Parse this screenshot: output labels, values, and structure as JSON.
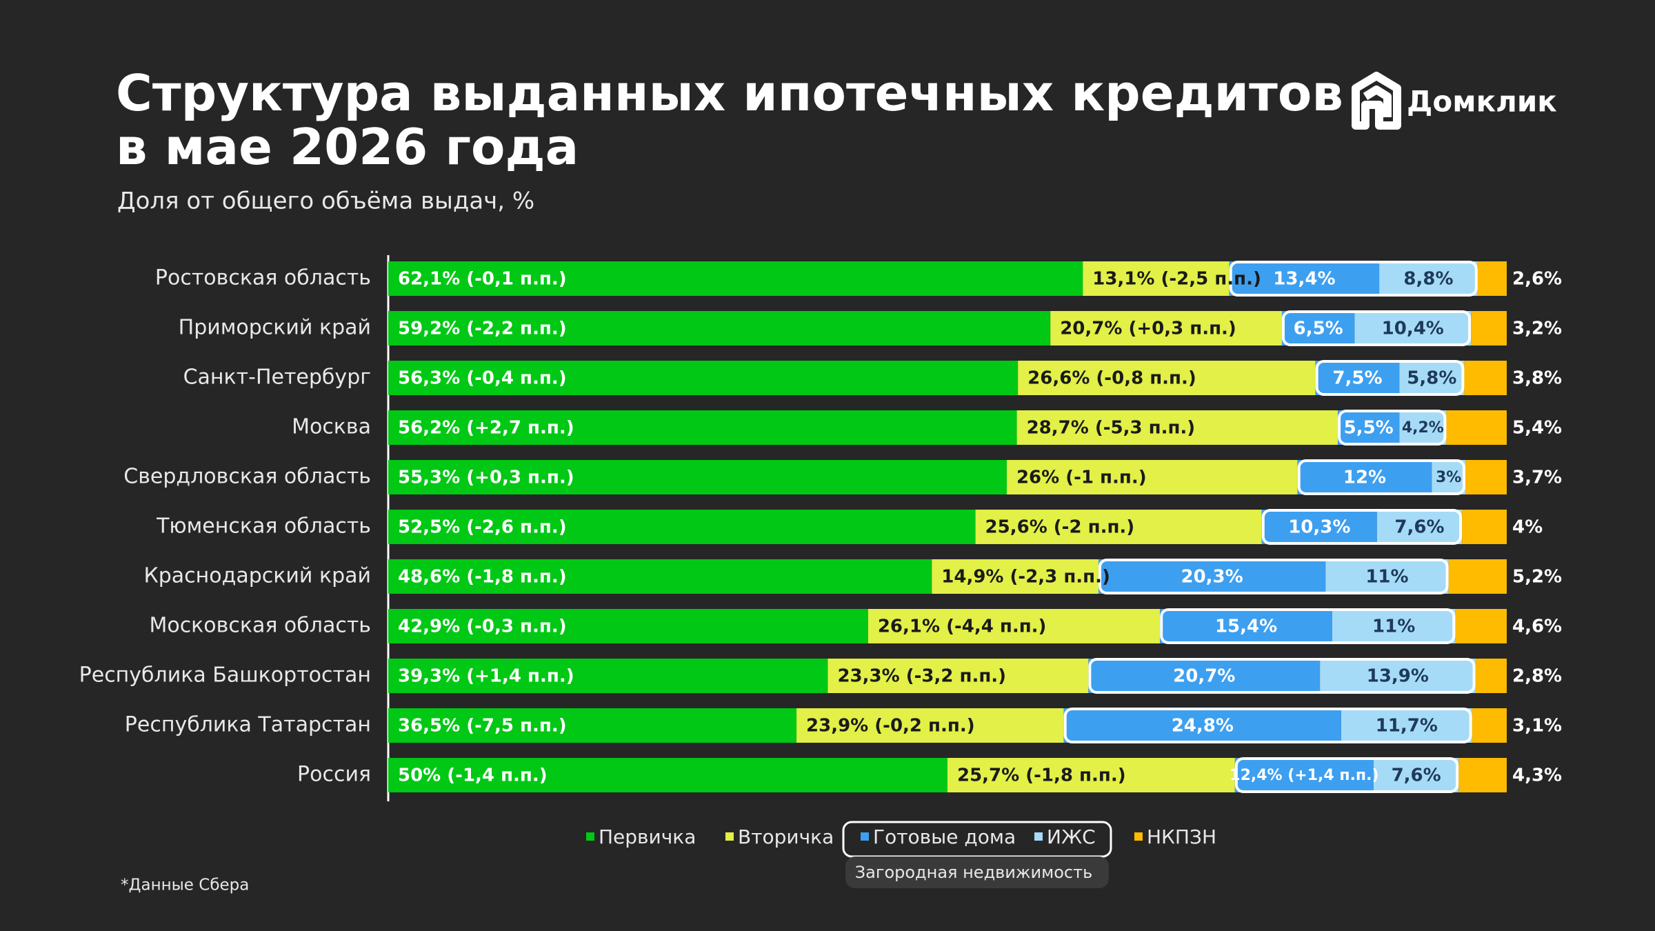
{
  "chart_data": {
    "type": "stacked_bar_horizontal",
    "title": "Структура выданных ипотечных кредитов в мае 2026 года",
    "subtitle": "Доля от общего объёма выдач, %",
    "logo": "Домклик",
    "footnote": "*Данные Сбера",
    "group_label": "Загородная недвижимость",
    "xlim": [
      0,
      100
    ],
    "categories": [
      "Ростовская область",
      "Приморский край",
      "Санкт-Петербург",
      "Москва",
      "Свердловская область",
      "Тюменская область",
      "Краснодарский край",
      "Московская область",
      "Республика Башкортостан",
      "Республика Татарстан",
      "Россия"
    ],
    "series": [
      {
        "name": "Первичка",
        "color": "#00c814",
        "values": [
          62.1,
          59.2,
          56.3,
          56.2,
          55.3,
          52.5,
          48.6,
          42.9,
          39.3,
          36.5,
          50
        ],
        "value_labels": [
          "62,1% (-0,1 п.п.)",
          "59,2% (-2,2 п.п.)",
          "56,3% (-0,4 п.п.)",
          "56,2% (+2,7 п.п.)",
          "55,3% (+0,3 п.п.)",
          "52,5% (-2,6 п.п.)",
          "48,6% (-1,8 п.п.)",
          "42,9% (-0,3 п.п.)",
          "39,3% (+1,4 п.п.)",
          "36,5% (-7,5 п.п.)",
          "50% (-1,4 п.п.)"
        ]
      },
      {
        "name": "Вторичка",
        "color": "#e2f047",
        "values": [
          13.1,
          20.7,
          26.6,
          28.7,
          26,
          25.6,
          14.9,
          26.1,
          23.3,
          23.9,
          25.7
        ],
        "value_labels": [
          "13,1% (-2,5 п.п.)",
          "20,7% (+0,3 п.п.)",
          "26,6% (-0,8 п.п.)",
          "28,7% (-5,3 п.п.)",
          "26% (-1 п.п.)",
          "25,6% (-2 п.п.)",
          "14,9% (-2,3 п.п.)",
          "26,1% (-4,4 п.п.)",
          "23,3% (-3,2 п.п.)",
          "23,9% (-0,2 п.п.)",
          "25,7% (-1,8 п.п.)"
        ]
      },
      {
        "name": "Готовые дома",
        "color": "#3d9ff0",
        "values": [
          13.4,
          6.5,
          7.5,
          5.5,
          12,
          10.3,
          20.3,
          15.4,
          20.7,
          24.8,
          12.4
        ],
        "value_labels": [
          "13,4%",
          "6,5%",
          "7,5%",
          "5,5%",
          "12%",
          "10,3%",
          "20,3%",
          "15,4%",
          "20,7%",
          "24,8%",
          "12,4% (+1,4 п.п.)"
        ]
      },
      {
        "name": "ИЖС",
        "color": "#a6dbf7",
        "values": [
          8.8,
          10.4,
          5.8,
          4.2,
          3,
          7.6,
          11,
          11,
          13.9,
          11.7,
          7.6
        ],
        "value_labels": [
          "8,8%",
          "10,4%",
          "5,8%",
          "4,2%",
          "3%",
          "7,6%",
          "11%",
          "11%",
          "13,9%",
          "11,7%",
          "7,6%"
        ]
      },
      {
        "name": "НКПЗН",
        "color": "#ffbb00",
        "values": [
          2.6,
          3.2,
          3.8,
          5.4,
          3.7,
          4,
          5.2,
          4.6,
          2.8,
          3.1,
          4.3
        ],
        "value_labels": [
          "2,6%",
          "3,2%",
          "3,8%",
          "5,4%",
          "3,7%",
          "4%",
          "5,2%",
          "4,6%",
          "2,8%",
          "3,1%",
          "4,3%"
        ]
      }
    ]
  }
}
